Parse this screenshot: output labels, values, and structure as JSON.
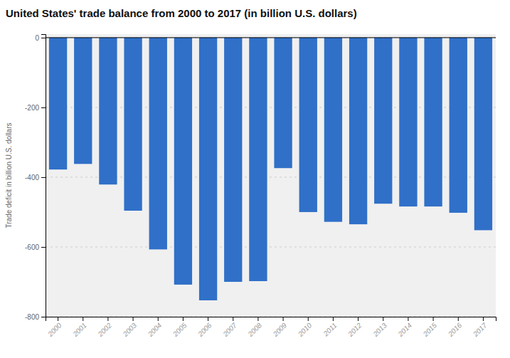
{
  "chart_data": {
    "type": "bar",
    "title": "United States' trade balance from 2000 to 2017 (in billion U.S. dollars)",
    "ylabel": "Trade deficit in billion U.S. dollars",
    "categories": [
      "2000",
      "2001",
      "2002",
      "2003",
      "2004",
      "2005",
      "2006",
      "2007",
      "2008",
      "2009",
      "2010",
      "2011",
      "2012",
      "2013",
      "2014",
      "2015",
      "2016",
      "2017"
    ],
    "values": [
      -378,
      -362,
      -421,
      -496,
      -607,
      -708,
      -753,
      -700,
      -698,
      -374,
      -500,
      -528,
      -535,
      -476,
      -484,
      -484,
      -502,
      -552
    ],
    "color": "#3070c8",
    "ylim": [
      -800,
      10
    ],
    "yticks": [
      0,
      -200,
      -400,
      -600,
      -800
    ],
    "grid": true
  }
}
